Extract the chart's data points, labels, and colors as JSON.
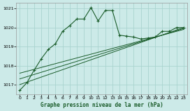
{
  "title": "Graphe pression niveau de la mer (hPa)",
  "bg_color": "#cceae8",
  "grid_color": "#aad4d0",
  "line_color": "#1a5c2a",
  "xlim": [
    -0.5,
    23.5
  ],
  "ylim": [
    1016.5,
    1021.3
  ],
  "yticks": [
    1017,
    1018,
    1019,
    1020,
    1021
  ],
  "xticks": [
    0,
    1,
    2,
    3,
    4,
    5,
    6,
    7,
    8,
    9,
    10,
    11,
    12,
    13,
    14,
    15,
    16,
    17,
    18,
    19,
    20,
    21,
    22,
    23
  ],
  "main_x": [
    0,
    1,
    2,
    3,
    4,
    5,
    6,
    7,
    8,
    9,
    10,
    11,
    12,
    13,
    14,
    15,
    16,
    17,
    18,
    19,
    20,
    21,
    22,
    23
  ],
  "main_y": [
    1016.7,
    1017.1,
    1017.75,
    1018.35,
    1018.85,
    1019.15,
    1019.8,
    1020.1,
    1020.45,
    1020.45,
    1021.05,
    1020.35,
    1020.9,
    1020.9,
    1019.6,
    1019.55,
    1019.5,
    1019.4,
    1019.45,
    1019.5,
    1019.8,
    1019.8,
    1020.0,
    1020.0
  ],
  "line1_x": [
    0,
    23
  ],
  "line1_y": [
    1017.0,
    1020.0
  ],
  "line2_x": [
    0,
    23
  ],
  "line2_y": [
    1017.3,
    1019.95
  ],
  "line3_x": [
    0,
    23
  ],
  "line3_y": [
    1017.6,
    1019.9
  ]
}
